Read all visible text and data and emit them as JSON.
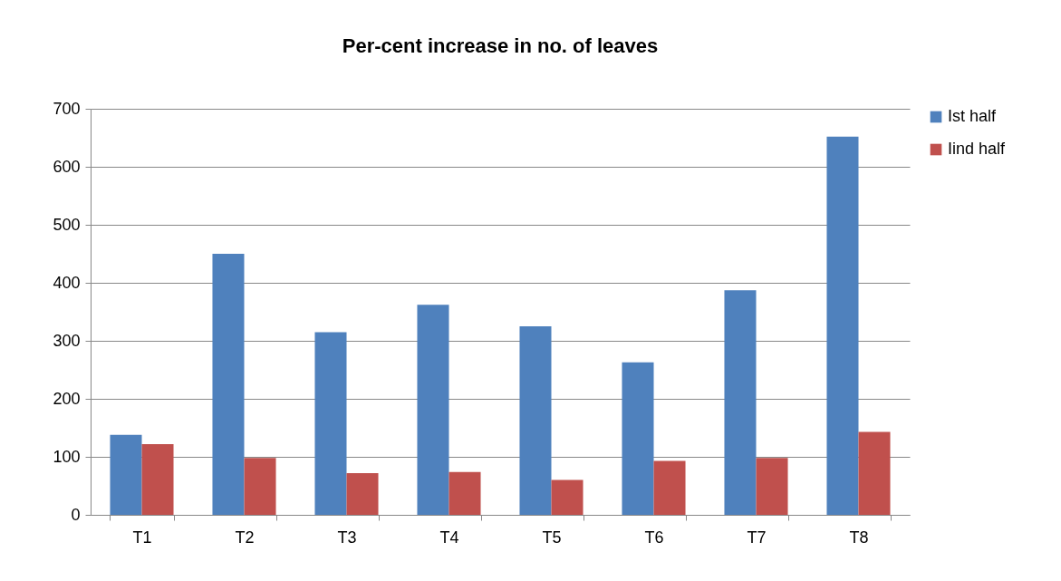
{
  "chart_data": {
    "type": "bar",
    "title": "Per-cent increase in no. of leaves",
    "categories": [
      "T1",
      "T2",
      "T3",
      "T4",
      "T5",
      "T6",
      "T7",
      "T8"
    ],
    "series": [
      {
        "name": "Ist half",
        "color": "#4f81bd",
        "values": [
          138,
          450,
          315,
          362,
          325,
          263,
          387,
          652
        ]
      },
      {
        "name": "Iind half",
        "color": "#c0504d",
        "values": [
          122,
          98,
          72,
          74,
          60,
          93,
          98,
          143
        ]
      }
    ],
    "ylim": [
      0,
      700
    ],
    "yticks": [
      0,
      100,
      200,
      300,
      400,
      500,
      600,
      700
    ],
    "grid": "y",
    "legend": "right"
  }
}
